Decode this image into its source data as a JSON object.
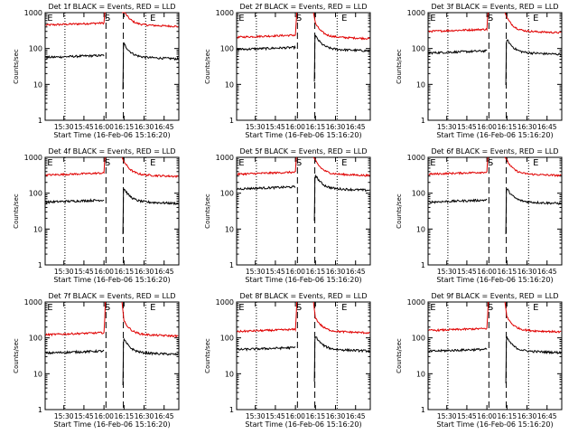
{
  "chart_data": [
    {
      "type": "line",
      "title": "Det 1f BLACK = Events, RED = LLD",
      "xlabel": "Start Time (16-Feb-06 15:16:20)",
      "ylabel": "Counts/sec",
      "x_ticks": [
        "15:30",
        "15:45",
        "16:00",
        "16:15",
        "16:30",
        "16:45"
      ],
      "y_ticks": [
        "1",
        "10",
        "100",
        "1000"
      ],
      "ylim": [
        1,
        1000
      ],
      "yscale": "log",
      "markers": [
        "E",
        "S",
        "E"
      ],
      "lld_level": 480,
      "events_level": 60
    },
    {
      "type": "line",
      "title": "Det 2f BLACK = Events, RED = LLD",
      "xlabel": "Start Time (16-Feb-06 15:16:20)",
      "ylabel": "Counts/sec",
      "x_ticks": [
        "15:30",
        "15:45",
        "16:00",
        "16:15",
        "16:30",
        "16:45"
      ],
      "y_ticks": [
        "1",
        "10",
        "100",
        "1000"
      ],
      "ylim": [
        1,
        1000
      ],
      "yscale": "log",
      "markers": [
        "E",
        "S",
        "E"
      ],
      "lld_level": 220,
      "events_level": 100
    },
    {
      "type": "line",
      "title": "Det 3f BLACK = Events, RED = LLD",
      "xlabel": "Start Time (16-Feb-06 15:16:20)",
      "ylabel": "Counts/sec",
      "x_ticks": [
        "15:30",
        "15:45",
        "16:00",
        "16:15",
        "16:30",
        "16:45"
      ],
      "y_ticks": [
        "1",
        "10",
        "100",
        "1000"
      ],
      "ylim": [
        1,
        1000
      ],
      "yscale": "log",
      "markers": [
        "E",
        "S",
        "E"
      ],
      "lld_level": 320,
      "events_level": 80
    },
    {
      "type": "line",
      "title": "Det 4f BLACK = Events, RED = LLD",
      "xlabel": "Start Time (16-Feb-06 15:16:20)",
      "ylabel": "Counts/sec",
      "x_ticks": [
        "15:30",
        "15:45",
        "16:00",
        "16:15",
        "16:30",
        "16:45"
      ],
      "y_ticks": [
        "1",
        "10",
        "100",
        "1000"
      ],
      "ylim": [
        1,
        1000
      ],
      "yscale": "log",
      "markers": [
        "E",
        "S",
        "E"
      ],
      "lld_level": 340,
      "events_level": 60
    },
    {
      "type": "line",
      "title": "Det 5f BLACK = Events, RED = LLD",
      "xlabel": "Start Time (16-Feb-06 15:16:20)",
      "ylabel": "Counts/sec",
      "x_ticks": [
        "15:30",
        "15:45",
        "16:00",
        "16:15",
        "16:30",
        "16:45"
      ],
      "y_ticks": [
        "1",
        "10",
        "100",
        "1000"
      ],
      "ylim": [
        1,
        1000
      ],
      "yscale": "log",
      "markers": [
        "E",
        "S",
        "E"
      ],
      "lld_level": 360,
      "events_level": 140
    },
    {
      "type": "line",
      "title": "Det 6f BLACK = Events, RED = LLD",
      "xlabel": "Start Time (16-Feb-06 15:16:20)",
      "ylabel": "Counts/sec",
      "x_ticks": [
        "15:30",
        "15:45",
        "16:00",
        "16:15",
        "16:30",
        "16:45"
      ],
      "y_ticks": [
        "1",
        "10",
        "100",
        "1000"
      ],
      "ylim": [
        1,
        1000
      ],
      "yscale": "log",
      "markers": [
        "E",
        "S",
        "E"
      ],
      "lld_level": 360,
      "events_level": 60
    },
    {
      "type": "line",
      "title": "Det 7f BLACK = Events, RED = LLD",
      "xlabel": "Start Time (16-Feb-06 15:16:20)",
      "ylabel": "Counts/sec",
      "x_ticks": [
        "15:30",
        "15:45",
        "16:00",
        "16:15",
        "16:30",
        "16:45"
      ],
      "y_ticks": [
        "1",
        "10",
        "100",
        "1000"
      ],
      "ylim": [
        1,
        1000
      ],
      "yscale": "log",
      "markers": [
        "E",
        "S",
        "E"
      ],
      "lld_level": 130,
      "events_level": 40
    },
    {
      "type": "line",
      "title": "Det 8f BLACK = Events, RED = LLD",
      "xlabel": "Start Time (16-Feb-06 15:16:20)",
      "ylabel": "Counts/sec",
      "x_ticks": [
        "15:30",
        "15:45",
        "16:00",
        "16:15",
        "16:30",
        "16:45"
      ],
      "y_ticks": [
        "1",
        "10",
        "100",
        "1000"
      ],
      "ylim": [
        1,
        1000
      ],
      "yscale": "log",
      "markers": [
        "E",
        "S",
        "E"
      ],
      "lld_level": 160,
      "events_level": 50
    },
    {
      "type": "line",
      "title": "Det 9f BLACK = Events, RED = LLD",
      "xlabel": "Start Time (16-Feb-06 15:16:20)",
      "ylabel": "Counts/sec",
      "x_ticks": [
        "15:30",
        "15:45",
        "16:00",
        "16:15",
        "16:30",
        "16:45"
      ],
      "y_ticks": [
        "1",
        "10",
        "100",
        "1000"
      ],
      "ylim": [
        1,
        1000
      ],
      "yscale": "log",
      "markers": [
        "E",
        "S",
        "E"
      ],
      "lld_level": 170,
      "events_level": 45
    }
  ],
  "colors": {
    "events": "#000000",
    "lld": "#e00000",
    "axes": "#000000",
    "background": "#ffffff"
  }
}
